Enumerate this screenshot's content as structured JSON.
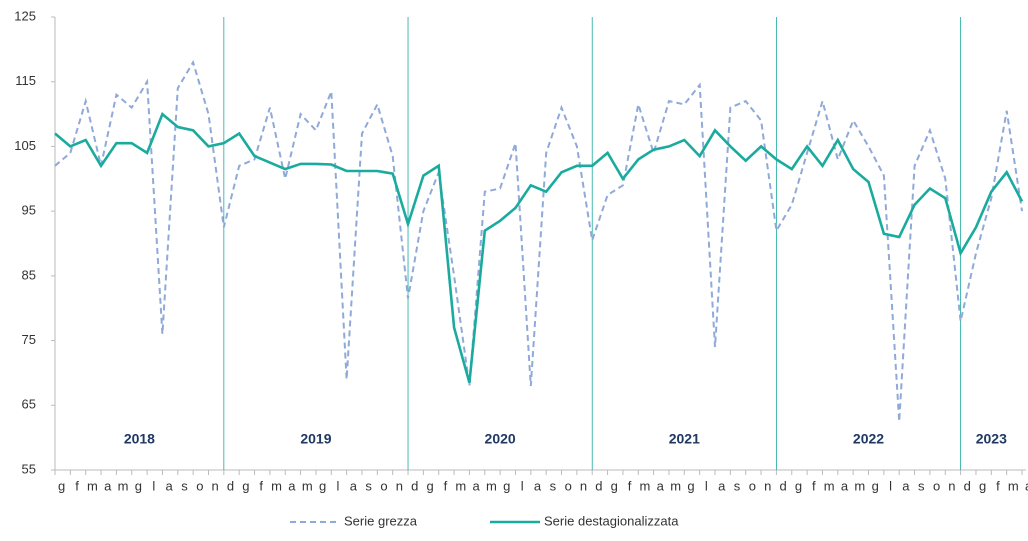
{
  "chart_data": {
    "type": "line",
    "categories": [
      "g",
      "f",
      "m",
      "a",
      "m",
      "g",
      "l",
      "a",
      "s",
      "o",
      "n",
      "d",
      "g",
      "f",
      "m",
      "a",
      "m",
      "g",
      "l",
      "a",
      "s",
      "o",
      "n",
      "d",
      "g",
      "f",
      "m",
      "a",
      "m",
      "g",
      "l",
      "a",
      "s",
      "o",
      "n",
      "d",
      "g",
      "f",
      "m",
      "a",
      "m",
      "g",
      "l",
      "a",
      "s",
      "o",
      "n",
      "d",
      "g",
      "f",
      "m",
      "a",
      "m",
      "g",
      "l",
      "a",
      "s",
      "o",
      "n",
      "d",
      "g",
      "f",
      "m",
      "a"
    ],
    "years": [
      "2018",
      "2019",
      "2020",
      "2021",
      "2022",
      "2023"
    ],
    "series": [
      {
        "name": "Serie grezza",
        "color": "#8fa9d8",
        "dashed": true,
        "values": [
          102,
          104,
          112,
          102,
          113,
          111,
          115,
          76,
          114,
          118,
          110,
          92.5,
          102,
          103,
          111,
          100,
          110,
          107.5,
          113.5,
          69,
          107,
          111.5,
          103.5,
          81.5,
          95,
          101,
          85,
          68,
          98,
          98.5,
          105.5,
          68,
          104,
          111,
          105,
          90.5,
          97.5,
          99,
          111.5,
          104,
          112,
          111.5,
          114.5,
          74,
          111,
          112,
          109,
          92,
          96,
          104,
          112,
          103,
          109,
          105,
          100.5,
          62.5,
          102,
          107.5,
          100,
          78,
          88.5,
          97,
          110.5,
          95
        ]
      },
      {
        "name": "Serie destagionalizzata",
        "color": "#1aab9e",
        "dashed": false,
        "values": [
          107,
          105,
          106,
          102,
          105.5,
          105.5,
          104,
          110,
          108,
          107.5,
          105,
          105.5,
          107,
          103.5,
          102.5,
          101.5,
          102.3,
          102.3,
          102.2,
          101.2,
          101.2,
          101.2,
          100.8,
          93,
          100.5,
          102,
          77,
          68.5,
          92,
          93.5,
          95.5,
          99,
          98,
          101,
          102,
          102,
          104,
          100,
          103,
          104.5,
          105,
          106,
          103.5,
          107.5,
          105,
          102.8,
          105,
          103,
          101.5,
          105,
          102,
          106,
          101.5,
          99.5,
          91.5,
          91,
          96,
          98.5,
          97,
          88.5,
          92.5,
          98,
          101,
          96.5
        ]
      }
    ],
    "ylim": [
      55,
      125
    ],
    "yticks": [
      55,
      65,
      75,
      85,
      95,
      105,
      115,
      125
    ],
    "legend": "bottom"
  }
}
